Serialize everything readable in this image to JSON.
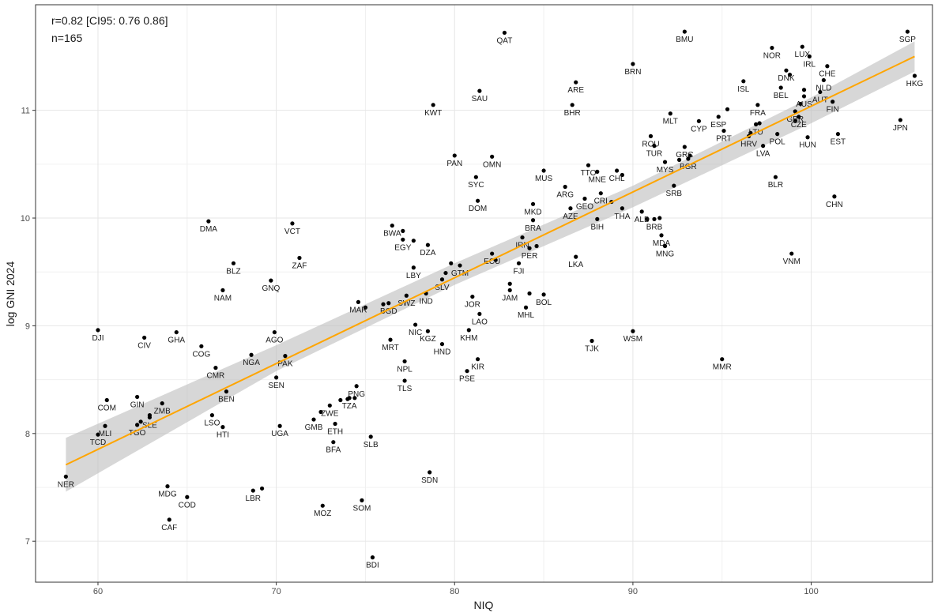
{
  "chart_data": {
    "type": "scatter",
    "title": "",
    "xlabel": "NIQ",
    "ylabel": "log GNI 2024",
    "xlim": [
      56.5,
      106.8
    ],
    "ylim": [
      6.62,
      11.98
    ],
    "xticks": [
      60,
      70,
      80,
      90,
      100
    ],
    "yticks": [
      7,
      8,
      9,
      10,
      11
    ],
    "grid": true,
    "annotations": [
      "r=0.82 [CI95: 0.76 0.86]",
      "n=165"
    ],
    "fit": {
      "type": "linear",
      "x0": 58.2,
      "y0": 7.71,
      "x1": 105.8,
      "y1": 11.5
    },
    "band": {
      "x": [
        58.2,
        70,
        80,
        90,
        100,
        105.8
      ],
      "upper": [
        7.96,
        8.82,
        9.58,
        10.3,
        11.12,
        11.64
      ],
      "lower": [
        7.46,
        8.58,
        9.38,
        10.1,
        10.88,
        11.36
      ]
    },
    "points": [
      {
        "label": "SGP",
        "x": 105.4,
        "y": 11.73
      },
      {
        "label": "HKG",
        "x": 105.8,
        "y": 11.32
      },
      {
        "label": "JPN",
        "x": 105.0,
        "y": 10.91
      },
      {
        "label": "QAT",
        "x": 82.8,
        "y": 11.72
      },
      {
        "label": "BMU",
        "x": 92.9,
        "y": 11.73
      },
      {
        "label": "NOR",
        "x": 97.8,
        "y": 11.58
      },
      {
        "label": "LUX",
        "x": 99.5,
        "y": 11.59
      },
      {
        "label": "IRL",
        "x": 99.9,
        "y": 11.5
      },
      {
        "label": "CHE",
        "x": 100.9,
        "y": 11.41
      },
      {
        "label": "DNK",
        "x": 98.6,
        "y": 11.37
      },
      {
        "label": "NLD",
        "x": 100.7,
        "y": 11.28
      },
      {
        "label": "BRN",
        "x": 90.0,
        "y": 11.43
      },
      {
        "label": "ISL",
        "x": 96.2,
        "y": 11.27
      },
      {
        "label": "BEL",
        "x": 98.3,
        "y": 11.21
      },
      {
        "label": "AUT",
        "x": 100.5,
        "y": 11.17
      },
      {
        "label": "AUS",
        "x": 99.6,
        "y": 11.13
      },
      {
        "label": "FIN",
        "x": 101.2,
        "y": 11.08
      },
      {
        "label": "GBR",
        "x": 99.1,
        "y": 10.99
      },
      {
        "label": "CZE",
        "x": 99.3,
        "y": 10.94
      },
      {
        "label": "ARE",
        "x": 86.8,
        "y": 11.26
      },
      {
        "label": "SAU",
        "x": 81.4,
        "y": 11.18
      },
      {
        "label": "BHR",
        "x": 86.6,
        "y": 11.05
      },
      {
        "label": "KWT",
        "x": 78.8,
        "y": 11.05
      },
      {
        "label": "FRA",
        "x": 97.0,
        "y": 11.05
      },
      {
        "label": "MLT",
        "x": 92.1,
        "y": 10.97
      },
      {
        "label": "CYP",
        "x": 93.7,
        "y": 10.9
      },
      {
        "label": "ESP",
        "x": 94.8,
        "y": 10.94
      },
      {
        "label": "LTU",
        "x": 96.9,
        "y": 10.87
      },
      {
        "label": "PRT",
        "x": 95.1,
        "y": 10.81
      },
      {
        "label": "HRV",
        "x": 96.5,
        "y": 10.76
      },
      {
        "label": "POL",
        "x": 98.1,
        "y": 10.78
      },
      {
        "label": "HUN",
        "x": 99.8,
        "y": 10.75
      },
      {
        "label": "EST",
        "x": 101.5,
        "y": 10.78
      },
      {
        "label": "LVA",
        "x": 97.3,
        "y": 10.67
      },
      {
        "label": "ROU",
        "x": 91.0,
        "y": 10.76
      },
      {
        "label": "TUR",
        "x": 91.2,
        "y": 10.67
      },
      {
        "label": "GRC",
        "x": 92.9,
        "y": 10.66
      },
      {
        "label": "BGR",
        "x": 93.1,
        "y": 10.55
      },
      {
        "label": "MYS",
        "x": 91.8,
        "y": 10.52
      },
      {
        "label": "PAN",
        "x": 80.0,
        "y": 10.58
      },
      {
        "label": "OMN",
        "x": 82.1,
        "y": 10.57
      },
      {
        "label": "TTO",
        "x": 87.5,
        "y": 10.49
      },
      {
        "label": "MNE",
        "x": 88.0,
        "y": 10.43
      },
      {
        "label": "CHL",
        "x": 89.1,
        "y": 10.44
      },
      {
        "label": "MUS",
        "x": 85.0,
        "y": 10.44
      },
      {
        "label": "SYC",
        "x": 81.2,
        "y": 10.38
      },
      {
        "label": "ARG",
        "x": 86.2,
        "y": 10.29
      },
      {
        "label": "SRB",
        "x": 92.3,
        "y": 10.3
      },
      {
        "label": "BLR",
        "x": 98.0,
        "y": 10.38
      },
      {
        "label": "CRI",
        "x": 88.2,
        "y": 10.23
      },
      {
        "label": "DOM",
        "x": 81.3,
        "y": 10.16
      },
      {
        "label": "GEO",
        "x": 87.3,
        "y": 10.18
      },
      {
        "label": "MKD",
        "x": 84.4,
        "y": 10.13
      },
      {
        "label": "AZE",
        "x": 86.5,
        "y": 10.09
      },
      {
        "label": "THA",
        "x": 89.4,
        "y": 10.09
      },
      {
        "label": "CHN",
        "x": 101.3,
        "y": 10.2
      },
      {
        "label": "BIH",
        "x": 88.0,
        "y": 9.99
      },
      {
        "label": "ALB",
        "x": 90.5,
        "y": 10.06
      },
      {
        "label": "BRB",
        "x": 91.2,
        "y": 9.99
      },
      {
        "label": "BRA",
        "x": 84.4,
        "y": 9.98
      },
      {
        "label": "MDA",
        "x": 91.6,
        "y": 9.84
      },
      {
        "label": "MNG",
        "x": 91.8,
        "y": 9.74
      },
      {
        "label": "BWA",
        "x": 76.5,
        "y": 9.93
      },
      {
        "label": "EGY",
        "x": 77.1,
        "y": 9.8
      },
      {
        "label": "IRN",
        "x": 83.8,
        "y": 9.82
      },
      {
        "label": "PER",
        "x": 84.2,
        "y": 9.72
      },
      {
        "label": "DZA",
        "x": 78.5,
        "y": 9.75
      },
      {
        "label": "ECU",
        "x": 82.1,
        "y": 9.67
      },
      {
        "label": "LKA",
        "x": 86.8,
        "y": 9.64
      },
      {
        "label": "FJI",
        "x": 83.6,
        "y": 9.58
      },
      {
        "label": "VNM",
        "x": 98.9,
        "y": 9.67
      },
      {
        "label": "LBY",
        "x": 77.7,
        "y": 9.54
      },
      {
        "label": "GTM",
        "x": 80.3,
        "y": 9.56
      },
      {
        "label": "SLV",
        "x": 79.3,
        "y": 9.43
      },
      {
        "label": "JAM",
        "x": 83.1,
        "y": 9.33
      },
      {
        "label": "BOL",
        "x": 85.0,
        "y": 9.29
      },
      {
        "label": "IND",
        "x": 78.4,
        "y": 9.3
      },
      {
        "label": "SWZ",
        "x": 77.3,
        "y": 9.28
      },
      {
        "label": "JOR",
        "x": 81.0,
        "y": 9.27
      },
      {
        "label": "MHL",
        "x": 84.0,
        "y": 9.17
      },
      {
        "label": "BGD",
        "x": 76.3,
        "y": 9.21
      },
      {
        "label": "MAR",
        "x": 74.6,
        "y": 9.22
      },
      {
        "label": "LAO",
        "x": 81.4,
        "y": 9.11
      },
      {
        "label": "VCT",
        "x": 70.9,
        "y": 9.95
      },
      {
        "label": "DMA",
        "x": 66.2,
        "y": 9.97
      },
      {
        "label": "ZAF",
        "x": 71.3,
        "y": 9.63
      },
      {
        "label": "BLZ",
        "x": 67.6,
        "y": 9.58
      },
      {
        "label": "GNQ",
        "x": 69.7,
        "y": 9.42
      },
      {
        "label": "NAM",
        "x": 67.0,
        "y": 9.33
      },
      {
        "label": "NIC",
        "x": 77.8,
        "y": 9.01
      },
      {
        "label": "KGZ",
        "x": 78.5,
        "y": 8.95
      },
      {
        "label": "KHM",
        "x": 80.8,
        "y": 8.96
      },
      {
        "label": "WSM",
        "x": 90.0,
        "y": 8.95
      },
      {
        "label": "TJK",
        "x": 87.7,
        "y": 8.86
      },
      {
        "label": "MRT",
        "x": 76.4,
        "y": 8.87
      },
      {
        "label": "HND",
        "x": 79.3,
        "y": 8.83
      },
      {
        "label": "AGO",
        "x": 69.9,
        "y": 8.94
      },
      {
        "label": "DJI",
        "x": 60.0,
        "y": 8.96
      },
      {
        "label": "CIV",
        "x": 62.6,
        "y": 8.89
      },
      {
        "label": "GHA",
        "x": 64.4,
        "y": 8.94
      },
      {
        "label": "COG",
        "x": 65.8,
        "y": 8.81
      },
      {
        "label": "NGA",
        "x": 68.6,
        "y": 8.73
      },
      {
        "label": "PAK",
        "x": 70.5,
        "y": 8.72
      },
      {
        "label": "MMR",
        "x": 95.0,
        "y": 8.69
      },
      {
        "label": "KIR",
        "x": 81.3,
        "y": 8.69
      },
      {
        "label": "NPL",
        "x": 77.2,
        "y": 8.67
      },
      {
        "label": "PSE",
        "x": 80.7,
        "y": 8.58
      },
      {
        "label": "CMR",
        "x": 66.6,
        "y": 8.61
      },
      {
        "label": "SEN",
        "x": 70.0,
        "y": 8.52
      },
      {
        "label": "TLS",
        "x": 77.2,
        "y": 8.49
      },
      {
        "label": "PNG",
        "x": 74.5,
        "y": 8.44
      },
      {
        "label": "BEN",
        "x": 67.2,
        "y": 8.39
      },
      {
        "label": "TZA",
        "x": 74.1,
        "y": 8.33
      },
      {
        "label": "COM",
        "x": 60.5,
        "y": 8.31
      },
      {
        "label": "GIN",
        "x": 62.2,
        "y": 8.34
      },
      {
        "label": "ZMB",
        "x": 63.6,
        "y": 8.28
      },
      {
        "label": "ZWE",
        "x": 73.0,
        "y": 8.26
      },
      {
        "label": "LSO",
        "x": 66.4,
        "y": 8.17
      },
      {
        "label": "SLE",
        "x": 62.9,
        "y": 8.15
      },
      {
        "label": "GMB",
        "x": 72.1,
        "y": 8.13
      },
      {
        "label": "ETH",
        "x": 73.3,
        "y": 8.09
      },
      {
        "label": "TGO",
        "x": 62.2,
        "y": 8.08
      },
      {
        "label": "MLI",
        "x": 60.4,
        "y": 8.07
      },
      {
        "label": "HTI",
        "x": 67.0,
        "y": 8.06
      },
      {
        "label": "UGA",
        "x": 70.2,
        "y": 8.07
      },
      {
        "label": "TCD",
        "x": 60.0,
        "y": 7.99
      },
      {
        "label": "SLB",
        "x": 75.3,
        "y": 7.97
      },
      {
        "label": "BFA",
        "x": 73.2,
        "y": 7.92
      },
      {
        "label": "SDN",
        "x": 78.6,
        "y": 7.64
      },
      {
        "label": "NER",
        "x": 58.2,
        "y": 7.6
      },
      {
        "label": "MDG",
        "x": 63.9,
        "y": 7.51
      },
      {
        "label": "LBR",
        "x": 68.7,
        "y": 7.47
      },
      {
        "label": "COD",
        "x": 65.0,
        "y": 7.41
      },
      {
        "label": "SOM",
        "x": 74.8,
        "y": 7.38
      },
      {
        "label": "MOZ",
        "x": 72.6,
        "y": 7.33
      },
      {
        "label": "CAF",
        "x": 64.0,
        "y": 7.2
      },
      {
        "label": "BDI",
        "x": 75.4,
        "y": 6.85
      }
    ],
    "unlabeled_points": [
      {
        "x": 69.2,
        "y": 7.49
      },
      {
        "x": 77.1,
        "y": 9.88
      },
      {
        "x": 75.0,
        "y": 9.17
      },
      {
        "x": 76.0,
        "y": 9.2
      },
      {
        "x": 84.2,
        "y": 9.3
      },
      {
        "x": 83.1,
        "y": 9.39
      },
      {
        "x": 79.5,
        "y": 9.49
      },
      {
        "x": 79.8,
        "y": 9.58
      },
      {
        "x": 88.8,
        "y": 10.15
      },
      {
        "x": 89.4,
        "y": 10.4
      },
      {
        "x": 95.3,
        "y": 11.01
      },
      {
        "x": 98.8,
        "y": 11.33
      },
      {
        "x": 99.4,
        "y": 11.06
      },
      {
        "x": 99.1,
        "y": 10.9
      },
      {
        "x": 99.6,
        "y": 11.19
      },
      {
        "x": 97.1,
        "y": 10.88
      },
      {
        "x": 93.2,
        "y": 10.58
      },
      {
        "x": 91.5,
        "y": 10.0
      },
      {
        "x": 90.8,
        "y": 9.99
      },
      {
        "x": 92.6,
        "y": 10.54
      },
      {
        "x": 96.6,
        "y": 10.79
      },
      {
        "x": 74.0,
        "y": 8.32
      },
      {
        "x": 73.6,
        "y": 8.31
      },
      {
        "x": 72.5,
        "y": 8.2
      },
      {
        "x": 74.4,
        "y": 8.33
      },
      {
        "x": 77.7,
        "y": 9.79
      },
      {
        "x": 82.3,
        "y": 9.61
      },
      {
        "x": 84.6,
        "y": 9.74
      },
      {
        "x": 62.4,
        "y": 8.11
      },
      {
        "x": 62.9,
        "y": 8.17
      }
    ]
  }
}
